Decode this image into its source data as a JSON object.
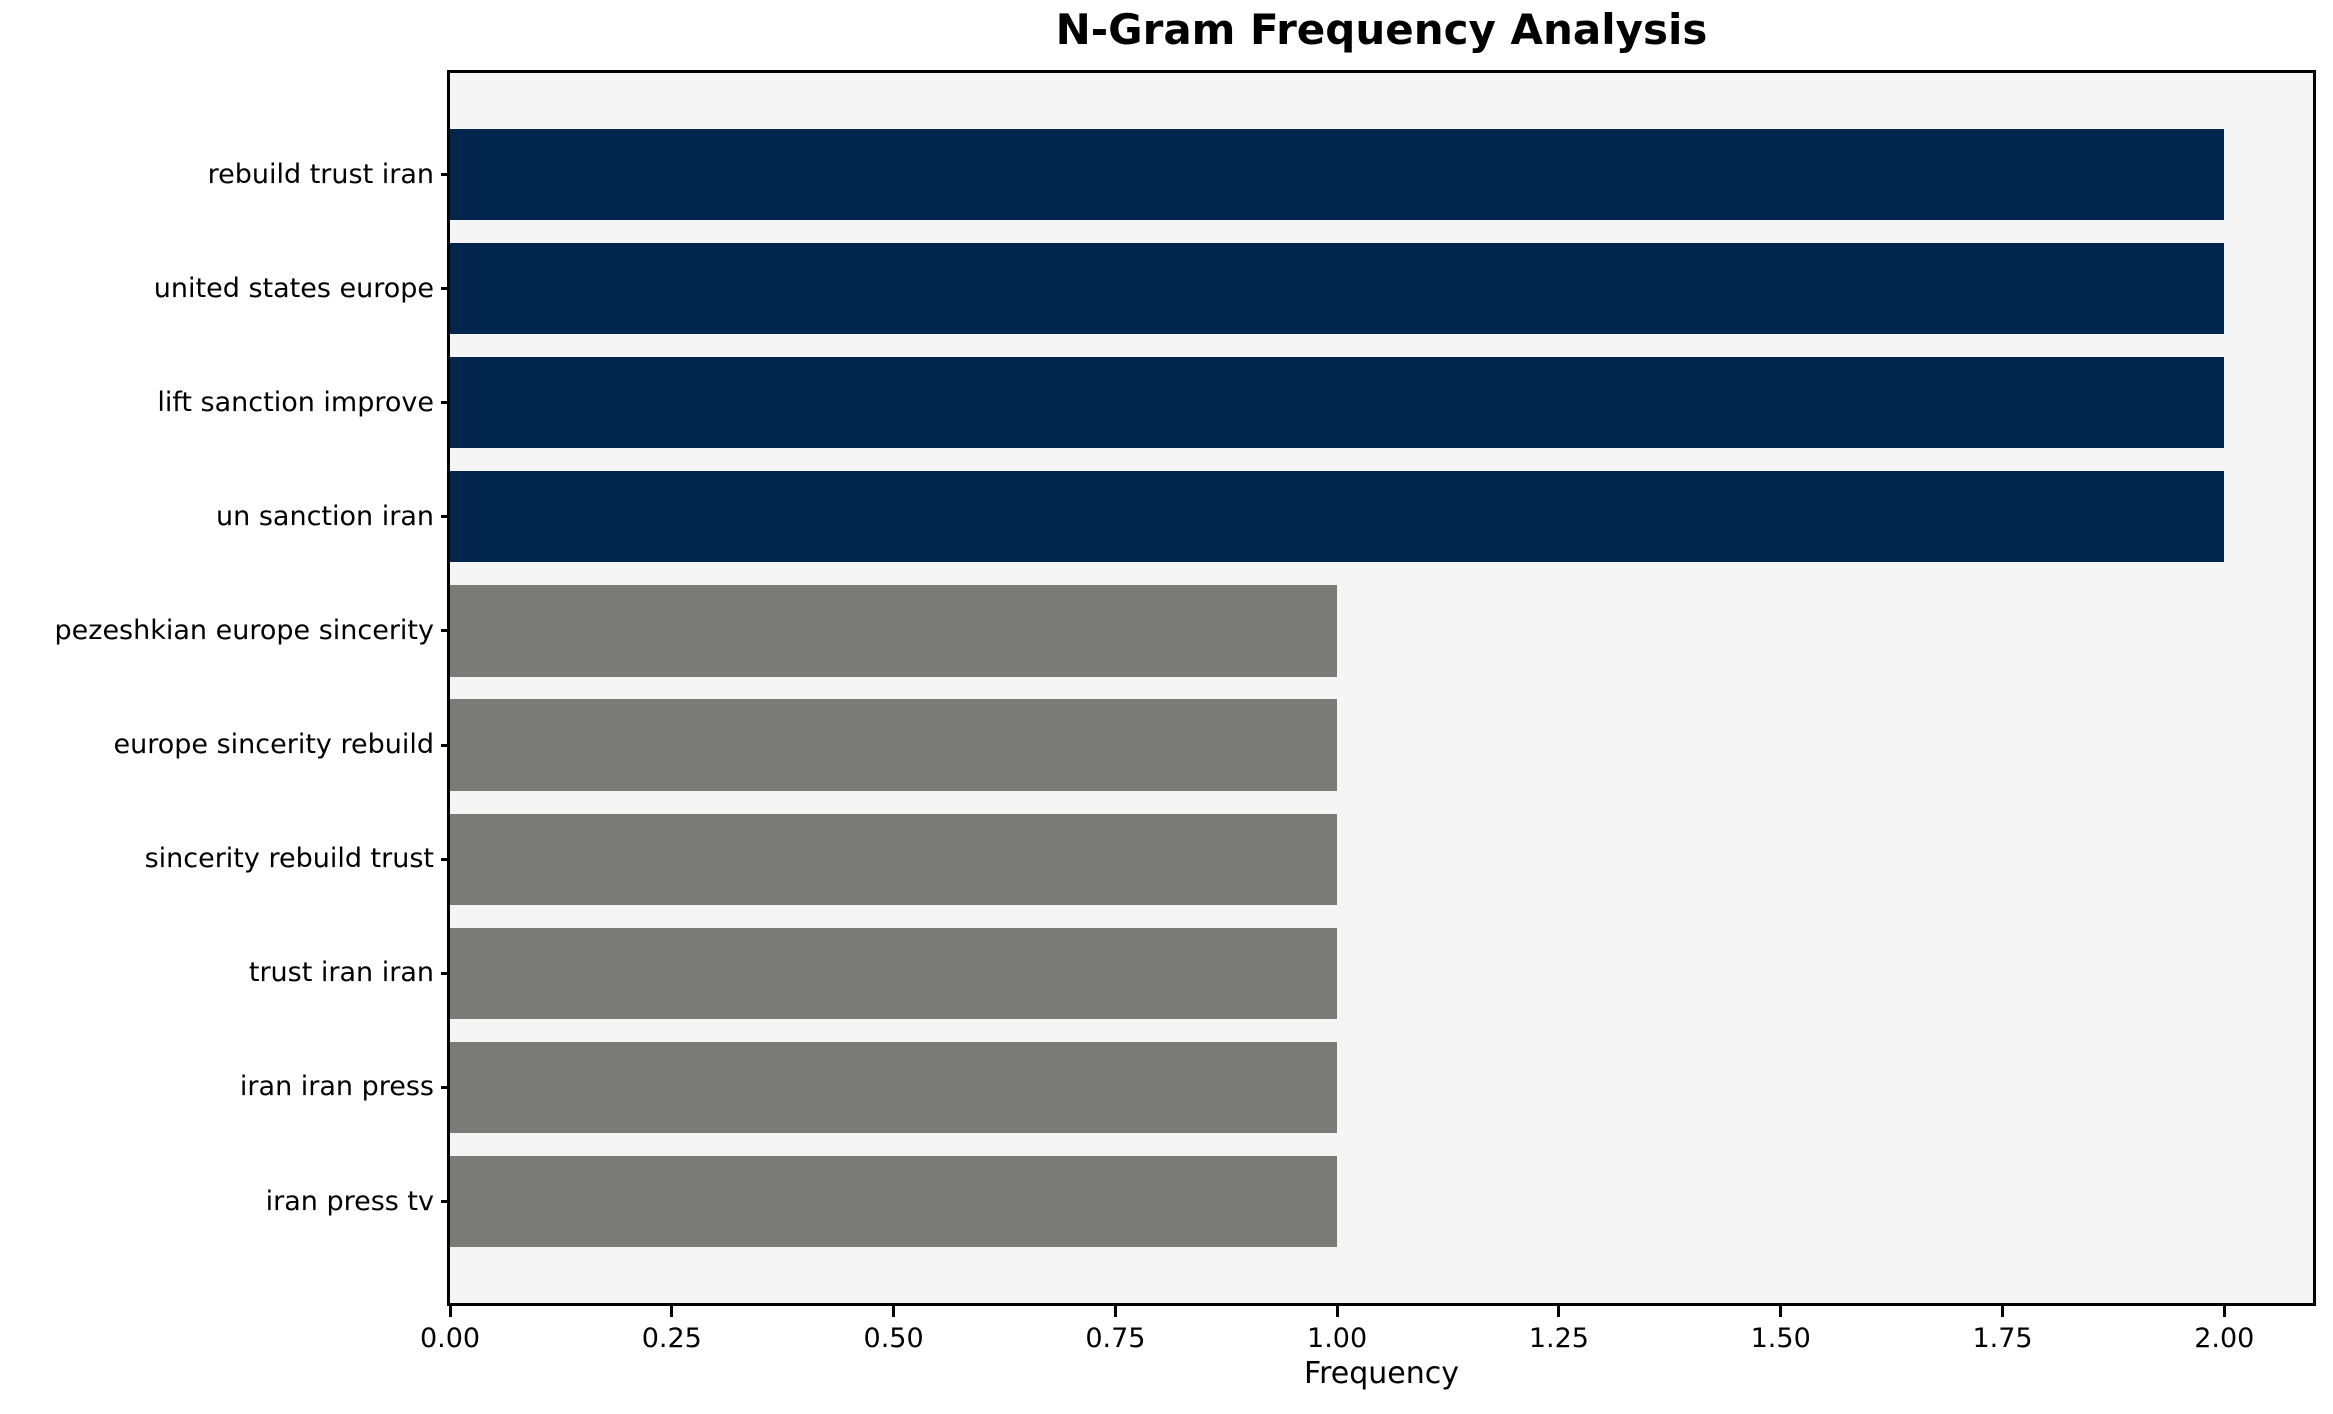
{
  "figure": {
    "background_color": "#ffffff",
    "plot_background_color": "#f5f5f5",
    "frame_color": "#000000"
  },
  "chart_data": {
    "type": "bar",
    "orientation": "horizontal",
    "title": "N-Gram Frequency Analysis",
    "xlabel": "Frequency",
    "ylabel": "",
    "categories": [
      "rebuild trust iran",
      "united states europe",
      "lift sanction improve",
      "un sanction iran",
      "pezeshkian europe sincerity",
      "europe sincerity rebuild",
      "sincerity rebuild trust",
      "trust iran iran",
      "iran iran press",
      "iran press tv"
    ],
    "values": [
      2,
      2,
      2,
      2,
      1,
      1,
      1,
      1,
      1,
      1
    ],
    "bar_colors": [
      "#02254d",
      "#02254d",
      "#02254d",
      "#02254d",
      "#7a7a77",
      "#7a7a77",
      "#7a7a77",
      "#7a7a77",
      "#7a7a77",
      "#7a7a77"
    ],
    "high_value_color": "#02254d",
    "low_value_color": "#7a7a77",
    "xlim": [
      0,
      2.1
    ],
    "xticks": [
      0,
      0.25,
      0.5,
      0.75,
      1.0,
      1.25,
      1.5,
      1.75,
      2.0
    ],
    "xtick_labels": [
      "0.00",
      "0.25",
      "0.50",
      "0.75",
      "1.00",
      "1.25",
      "1.50",
      "1.75",
      "2.00"
    ],
    "bar_height_fraction": 0.8,
    "grid": false,
    "legend_position": "none"
  }
}
